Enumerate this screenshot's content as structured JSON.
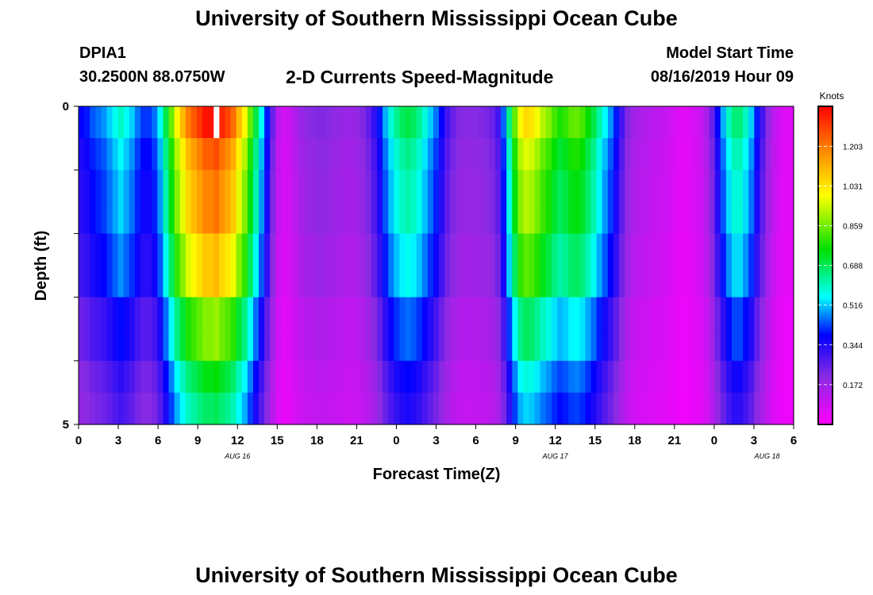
{
  "page": {
    "title_top": "University of Southern Mississippi Ocean Cube",
    "title_bottom": "University of Southern Mississippi Ocean Cube",
    "station_id": "DPIA1",
    "station_coords": "30.2500N 88.0750W",
    "plot_title": "2-D Currents Speed-Magnitude",
    "model_start_label": "Model Start Time",
    "model_start_value": "08/16/2019 Hour 09"
  },
  "chart_data": {
    "type": "heatmap",
    "title": "2-D Currents Speed-Magnitude",
    "xlabel": "Forecast Time(Z)",
    "ylabel": "Depth (ft)",
    "x_tick_labels": [
      "0",
      "3",
      "6",
      "9",
      "12",
      "15",
      "18",
      "21",
      "0",
      "3",
      "6",
      "9",
      "12",
      "15",
      "18",
      "21",
      "0",
      "3",
      "6"
    ],
    "day_labels": [
      {
        "label": "AUG 16",
        "hour": 12
      },
      {
        "label": "AUG 17",
        "hour": 36
      },
      {
        "label": "AUG 18",
        "hour": 52
      }
    ],
    "x_range_hours": [
      0,
      54
    ],
    "y_tick_labels": [
      "0",
      "5"
    ],
    "ylim": [
      0,
      5
    ],
    "depth_layers_ft": [
      0.25,
      0.75,
      1.25,
      1.75,
      2.25,
      2.75,
      3.25,
      3.75,
      4.25,
      4.75
    ],
    "colorbar": {
      "unit_label": "Knots",
      "ticks": [
        "0.172",
        "0.344",
        "0.516",
        "0.688",
        "0.859",
        "1.031",
        "1.203"
      ],
      "range": [
        0,
        1.376
      ]
    },
    "surface_speed_knots": [
      0.38,
      0.4,
      0.44,
      0.46,
      0.48,
      0.52,
      0.56,
      0.6,
      0.56,
      0.52,
      0.46,
      0.42,
      0.42,
      0.46,
      0.55,
      0.7,
      0.85,
      1.0,
      1.1,
      1.2,
      1.25,
      1.3,
      1.35,
      1.35,
      1.38,
      1.32,
      1.28,
      1.22,
      1.1,
      1.0,
      0.85,
      0.7,
      0.55,
      0.4,
      0.25,
      0.12,
      0.08,
      0.1,
      0.14,
      0.18,
      0.2,
      0.21,
      0.22,
      0.22,
      0.21,
      0.2,
      0.19,
      0.18,
      0.18,
      0.19,
      0.22,
      0.26,
      0.32,
      0.4,
      0.5,
      0.58,
      0.64,
      0.68,
      0.7,
      0.68,
      0.64,
      0.58,
      0.52,
      0.46,
      0.38,
      0.3,
      0.25,
      0.22,
      0.21,
      0.21,
      0.21,
      0.22,
      0.23,
      0.25,
      0.3,
      0.45,
      0.65,
      0.85,
      1.0,
      1.05,
      1.03,
      0.98,
      0.92,
      0.88,
      0.82,
      0.78,
      0.8,
      0.84,
      0.85,
      0.82,
      0.76,
      0.7,
      0.62,
      0.55,
      0.48,
      0.4,
      0.3,
      0.22,
      0.17,
      0.15,
      0.14,
      0.13,
      0.12,
      0.11,
      0.1,
      0.08,
      0.06,
      0.05,
      0.06,
      0.08,
      0.1,
      0.15,
      0.25,
      0.38,
      0.5,
      0.6,
      0.66,
      0.66,
      0.6,
      0.52,
      0.4,
      0.3,
      0.2,
      0.12,
      0.08,
      0.06,
      0.06
    ],
    "depth_factor": [
      1.0,
      0.92,
      0.88,
      0.88,
      0.8,
      0.8,
      0.65,
      0.65,
      0.55,
      0.5
    ],
    "surface_scale_exponent": 1.0
  }
}
